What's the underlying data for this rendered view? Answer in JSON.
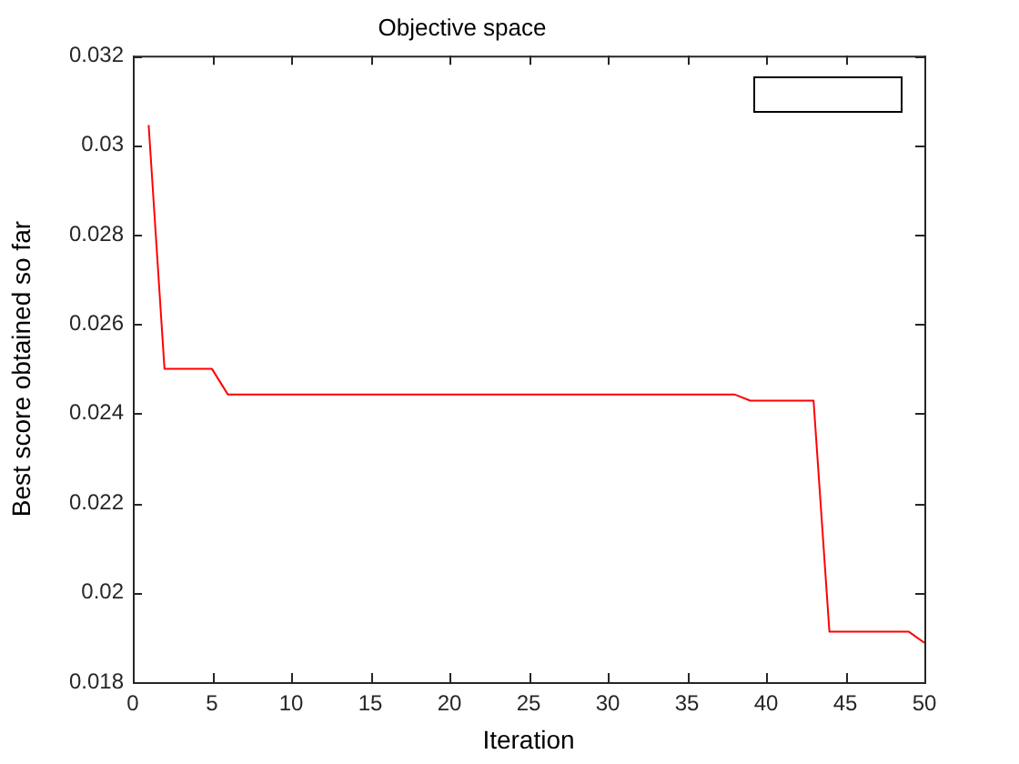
{
  "chart_data": {
    "type": "line",
    "title": "Objective space",
    "xlabel": "Iteration",
    "ylabel": "Best score obtained so far",
    "x": [
      1,
      2,
      3,
      4,
      5,
      6,
      7,
      8,
      9,
      10,
      11,
      12,
      13,
      14,
      15,
      16,
      17,
      18,
      19,
      20,
      21,
      22,
      23,
      24,
      25,
      26,
      27,
      28,
      29,
      30,
      31,
      32,
      33,
      34,
      35,
      36,
      37,
      38,
      39,
      40,
      41,
      42,
      43,
      44,
      45,
      46,
      47,
      48,
      49,
      50
    ],
    "series": [
      {
        "color": "#ff0000",
        "values": [
          0.03045,
          0.025,
          0.025,
          0.025,
          0.025,
          0.02443,
          0.02443,
          0.02443,
          0.02443,
          0.02443,
          0.02443,
          0.02443,
          0.02443,
          0.02443,
          0.02443,
          0.02443,
          0.02443,
          0.02443,
          0.02443,
          0.02443,
          0.02443,
          0.02443,
          0.02443,
          0.02443,
          0.02443,
          0.02443,
          0.02443,
          0.02443,
          0.02443,
          0.02443,
          0.02443,
          0.02443,
          0.02443,
          0.02443,
          0.02443,
          0.02443,
          0.02443,
          0.02443,
          0.02429,
          0.02429,
          0.02429,
          0.02429,
          0.02429,
          0.01913,
          0.01913,
          0.01913,
          0.01913,
          0.01913,
          0.01913,
          0.01888
        ]
      }
    ],
    "xlim": [
      0,
      50
    ],
    "xticks": [
      0,
      5,
      10,
      15,
      20,
      25,
      30,
      35,
      40,
      45,
      50
    ],
    "ylim": [
      0.018,
      0.032
    ],
    "yticks": [
      0.018,
      0.02,
      0.022,
      0.024,
      0.026,
      0.028,
      0.03,
      0.032
    ],
    "grid": false,
    "marker": "none",
    "line_style": "solid"
  }
}
